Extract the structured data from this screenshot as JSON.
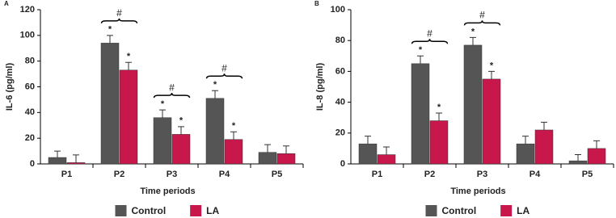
{
  "chart_data": [
    {
      "type": "bar",
      "panel": "A",
      "x_label": "Time periods",
      "y_label": "IL-6 (pg/ml)",
      "categories": [
        "P1",
        "P2",
        "P3",
        "P4",
        "P5"
      ],
      "series": [
        {
          "name": "Control",
          "color": "#555555",
          "values": [
            5,
            94,
            36,
            51,
            9
          ],
          "errors": [
            5,
            6,
            6,
            6,
            6
          ],
          "markers": [
            null,
            "*",
            "*",
            "*",
            null
          ]
        },
        {
          "name": "LA",
          "color": "#c8174a",
          "values": [
            1,
            73,
            23,
            19,
            8
          ],
          "errors": [
            6,
            6,
            6,
            6,
            6
          ],
          "markers": [
            null,
            "*",
            "*",
            "*",
            null
          ]
        }
      ],
      "group_labels": [
        null,
        "#",
        "#",
        "#",
        null
      ],
      "ylim": [
        0,
        120
      ],
      "yticks": [
        0,
        20,
        40,
        60,
        80,
        100,
        120
      ]
    },
    {
      "type": "bar",
      "panel": "B",
      "x_label": "Time periods",
      "y_label": "IL-8 (pg/ml)",
      "categories": [
        "P1",
        "P2",
        "P3",
        "P4",
        "P5"
      ],
      "series": [
        {
          "name": "Control",
          "color": "#555555",
          "values": [
            13,
            65,
            77,
            13,
            2
          ],
          "errors": [
            5,
            5,
            5,
            5,
            4
          ],
          "markers": [
            null,
            "*",
            "*",
            null,
            null
          ]
        },
        {
          "name": "LA",
          "color": "#c8174a",
          "values": [
            6,
            28,
            55,
            22,
            10
          ],
          "errors": [
            5,
            5,
            5,
            5,
            5
          ],
          "markers": [
            null,
            "*",
            "*",
            null,
            null
          ]
        }
      ],
      "group_labels": [
        null,
        "#",
        "#",
        null,
        null
      ],
      "ylim": [
        0,
        100
      ],
      "yticks": [
        0,
        20,
        40,
        60,
        80,
        100
      ]
    }
  ]
}
